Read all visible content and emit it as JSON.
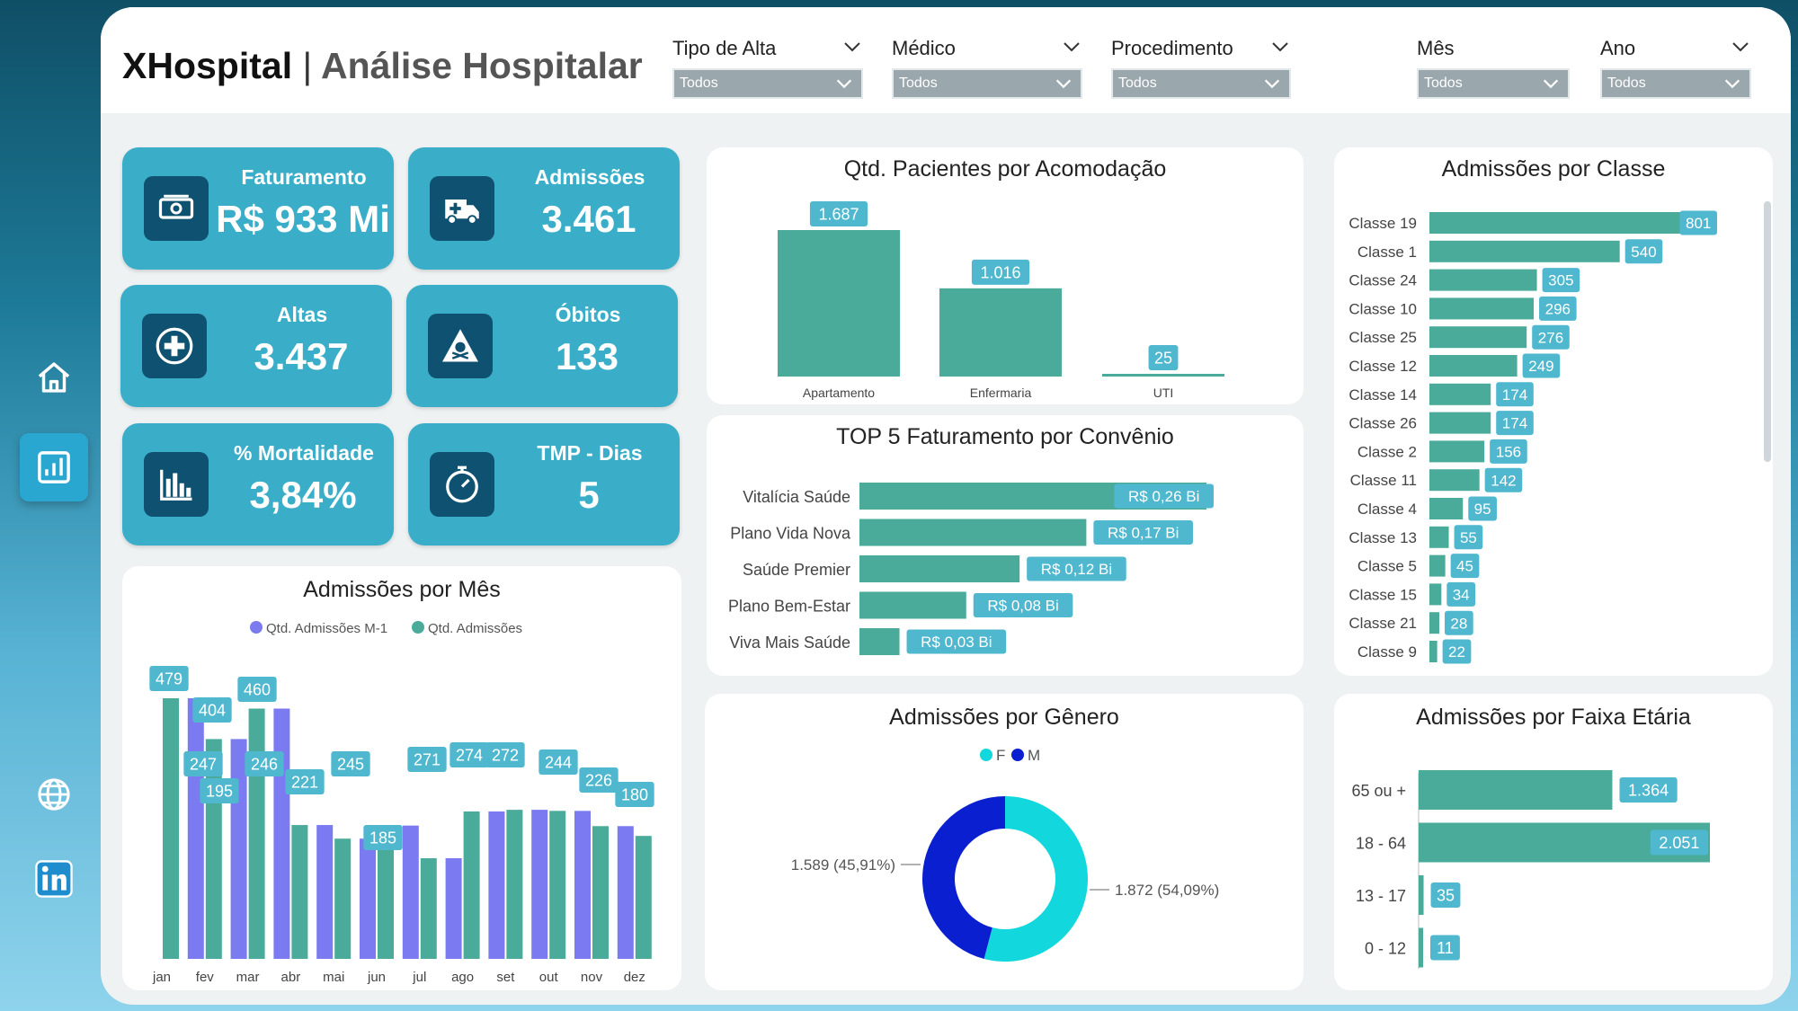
{
  "header": {
    "brand": "XHospital",
    "separator": "|",
    "subtitle": "Análise Hospitalar",
    "filters": [
      {
        "label": "Tipo de Alta",
        "value": "Todos"
      },
      {
        "label": "Médico",
        "value": "Todos"
      },
      {
        "label": "Procedimento",
        "value": "Todos"
      },
      {
        "label": "Mês",
        "value": "Todos"
      },
      {
        "label": "Ano",
        "value": "Todos"
      }
    ]
  },
  "sidebar": {
    "items": [
      {
        "icon": "home-icon"
      },
      {
        "icon": "bar-chart-icon",
        "active": true
      },
      {
        "icon": "globe-icon"
      },
      {
        "icon": "linkedin-icon"
      }
    ]
  },
  "kpis": [
    {
      "label": "Faturamento",
      "value": "R$ 933 Mi",
      "icon": "money-icon"
    },
    {
      "label": "Admissões",
      "value": "3.461",
      "icon": "ambulance-icon"
    },
    {
      "label": "Altas",
      "value": "3.437",
      "icon": "medical-cross-icon"
    },
    {
      "label": "Óbitos",
      "value": "133",
      "icon": "hazard-icon"
    },
    {
      "label": "% Mortalidade",
      "value": "3,84%",
      "icon": "bar-chart-icon"
    },
    {
      "label": "TMP - Dias",
      "value": "5",
      "icon": "stopwatch-icon"
    }
  ],
  "colors": {
    "teal": "#4aab9a",
    "purple": "#7b7af0",
    "label_bg": "#4fb8cf",
    "cyan": "#12d8dd",
    "navy": "#0a1fd0",
    "kpi": "#3aaec8",
    "kpi_icon": "#0f5170"
  },
  "chart_data": [
    {
      "id": "acomodacao",
      "type": "bar",
      "title": "Qtd. Pacientes por Acomodação",
      "categories": [
        "Apartamento",
        "Enfermaria",
        "UTI"
      ],
      "values": [
        1687,
        1016,
        25
      ],
      "value_labels": [
        "1.687",
        "1.016",
        "25"
      ]
    },
    {
      "id": "convenio",
      "type": "bar",
      "orientation": "horizontal",
      "title": "TOP 5 Faturamento por Convênio",
      "categories": [
        "Vitalícia Saúde",
        "Plano Vida Nova",
        "Saúde Premier",
        "Plano Bem-Estar",
        "Viva Mais Saúde"
      ],
      "values": [
        0.26,
        0.17,
        0.12,
        0.08,
        0.03
      ],
      "value_labels": [
        "R$ 0,26 Bi",
        "R$ 0,17 Bi",
        "R$ 0,12 Bi",
        "R$ 0,08 Bi",
        "R$ 0,03 Bi"
      ]
    },
    {
      "id": "classe",
      "type": "bar",
      "orientation": "horizontal",
      "title": "Admissões por Classe",
      "categories": [
        "Classe 19",
        "Classe 1",
        "Classe 24",
        "Classe 10",
        "Classe 25",
        "Classe 12",
        "Classe 14",
        "Classe 26",
        "Classe 2",
        "Classe 11",
        "Classe 4",
        "Classe 13",
        "Classe 5",
        "Classe 15",
        "Classe 21",
        "Classe 9"
      ],
      "values": [
        801,
        540,
        305,
        296,
        276,
        249,
        174,
        174,
        156,
        142,
        95,
        55,
        45,
        34,
        28,
        22
      ]
    },
    {
      "id": "mes",
      "type": "bar",
      "title": "Admissões por Mês",
      "categories": [
        "jan",
        "fev",
        "mar",
        "abr",
        "mai",
        "jun",
        "jul",
        "ago",
        "set",
        "out",
        "nov",
        "dez"
      ],
      "series": [
        {
          "name": "Qtd. Admissões M-1",
          "values": [
            null,
            479,
            404,
            460,
            246,
            221,
            245,
            185,
            271,
            274,
            272,
            244
          ]
        },
        {
          "name": "Qtd. Admissões",
          "values": [
            479,
            404,
            460,
            246,
            221,
            245,
            185,
            271,
            274,
            272,
            244,
            226
          ]
        }
      ],
      "point_labels": [
        "479",
        "404",
        "460",
        "247",
        "246",
        "195",
        "221",
        "245",
        "185",
        "271",
        "274",
        "272",
        "244",
        "226",
        "180"
      ],
      "legend": "top"
    },
    {
      "id": "genero",
      "type": "pie",
      "title": "Admissões por Gênero",
      "categories": [
        "F",
        "M"
      ],
      "values": [
        1872,
        1589
      ],
      "value_labels": [
        "1.872 (54,09%)",
        "1.589 (45,91%)"
      ],
      "legend": "top"
    },
    {
      "id": "faixa",
      "type": "bar",
      "orientation": "horizontal",
      "title": "Admissões por Faixa Etária",
      "categories": [
        "65 ou +",
        "18 - 64",
        "13 - 17",
        "0 - 12"
      ],
      "values": [
        1364,
        2051,
        35,
        11
      ],
      "value_labels": [
        "1.364",
        "2.051",
        "35",
        "11"
      ]
    }
  ]
}
